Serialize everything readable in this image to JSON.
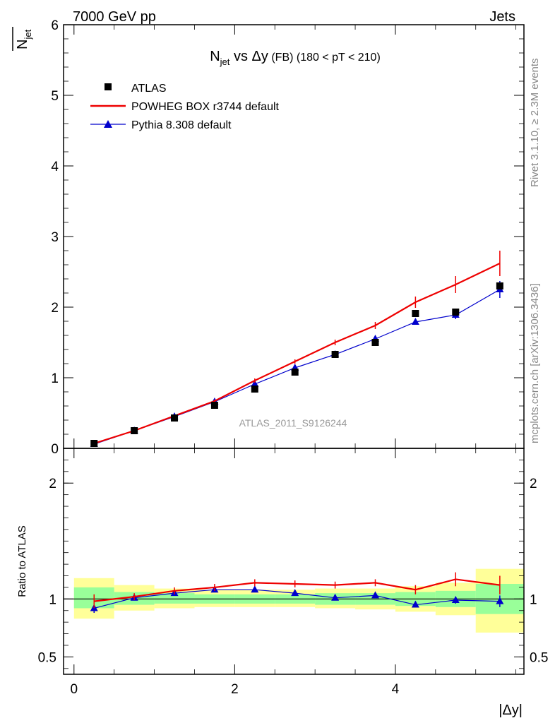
{
  "header": {
    "left": "7000 GeV pp",
    "right": "Jets"
  },
  "side_labels": {
    "rivet": "Rivet 3.1.10, ≥ 2.3M events",
    "mcplots": "mcplots.cern.ch [arXiv:1306.3436]"
  },
  "watermark": "ATLAS_2011_S9126244",
  "plot_title": {
    "n": "N",
    "n_sub": "jet",
    "vs": " vs ",
    "dy": "Δy",
    "fb": " (FB)",
    "range": " (180 < pT < 210)"
  },
  "ylabel_main": {
    "n": "N",
    "sub": "jet"
  },
  "ylabel_ratio": "Ratio to ATLAS",
  "xlabel": "|Δy|",
  "colors": {
    "atlas": "#000000",
    "powheg": "#ee0000",
    "pythia": "#0000cc",
    "band_inner": "#99ff99",
    "band_outer": "#ffff99"
  },
  "chart_data": [
    {
      "type": "line",
      "name_key": "main",
      "xlim": [
        -0.13,
        5.6
      ],
      "ylim": [
        0,
        6
      ],
      "yticks": [
        0,
        1,
        2,
        3,
        4,
        5,
        6
      ],
      "ytick_labels": [
        "0",
        "1",
        "2",
        "3",
        "4",
        "5",
        "6"
      ],
      "x_bins": [
        [
          0,
          0.5
        ],
        [
          0.5,
          1
        ],
        [
          1,
          1.5
        ],
        [
          1.5,
          2
        ],
        [
          2,
          2.5
        ],
        [
          2.5,
          3
        ],
        [
          3,
          3.5
        ],
        [
          3.5,
          4
        ],
        [
          4,
          4.5
        ],
        [
          4.5,
          5
        ],
        [
          5,
          5.6
        ]
      ],
      "x": [
        0.25,
        0.75,
        1.25,
        1.75,
        2.25,
        2.75,
        3.25,
        3.75,
        4.25,
        4.75,
        5.3
      ],
      "legend": {
        "position": "top-left",
        "entries": [
          "ATLAS",
          "POWHEG BOX r3744 default",
          "Pythia 8.308 default"
        ]
      },
      "series": [
        {
          "name": "ATLAS",
          "marker": "square",
          "values": [
            0.07,
            0.25,
            0.43,
            0.61,
            0.84,
            1.08,
            1.33,
            1.5,
            1.91,
            1.93,
            2.3
          ],
          "err": [
            0.02,
            0.02,
            0.03,
            0.03,
            0.03,
            0.03,
            0.03,
            0.04,
            0.05,
            0.05,
            0.06
          ]
        },
        {
          "name": "POWHEG BOX r3744 default",
          "marker": "line",
          "values": [
            0.07,
            0.25,
            0.46,
            0.67,
            0.96,
            1.23,
            1.5,
            1.74,
            2.07,
            2.32,
            2.62
          ],
          "err": [
            0.01,
            0.01,
            0.02,
            0.02,
            0.03,
            0.03,
            0.04,
            0.05,
            0.08,
            0.12,
            0.18
          ]
        },
        {
          "name": "Pythia 8.308 default",
          "marker": "triangle",
          "values": [
            0.06,
            0.25,
            0.45,
            0.66,
            0.91,
            1.14,
            1.33,
            1.55,
            1.79,
            1.89,
            2.25
          ],
          "err": [
            0.005,
            0.01,
            0.01,
            0.01,
            0.015,
            0.02,
            0.02,
            0.03,
            0.04,
            0.06,
            0.12
          ]
        }
      ]
    },
    {
      "type": "line",
      "name_key": "ratio",
      "xlim": [
        -0.13,
        5.6
      ],
      "ylim": [
        0.35,
        2.3
      ],
      "yticks": [
        0.5,
        1,
        2
      ],
      "ytick_labels": [
        "0.5",
        "1",
        "2"
      ],
      "xticks": [
        0,
        2,
        4
      ],
      "xtick_labels": [
        "0",
        "2",
        "4"
      ],
      "reference_line": 1,
      "bands": {
        "inner": [
          [
            0.92,
            1.1
          ],
          [
            0.95,
            1.06
          ],
          [
            0.96,
            1.05
          ],
          [
            0.96,
            1.04
          ],
          [
            0.96,
            1.04
          ],
          [
            0.96,
            1.04
          ],
          [
            0.95,
            1.05
          ],
          [
            0.95,
            1.05
          ],
          [
            0.94,
            1.06
          ],
          [
            0.93,
            1.07
          ],
          [
            0.87,
            1.13
          ]
        ],
        "outer": [
          [
            0.83,
            1.18
          ],
          [
            0.9,
            1.12
          ],
          [
            0.92,
            1.09
          ],
          [
            0.93,
            1.08
          ],
          [
            0.93,
            1.08
          ],
          [
            0.93,
            1.08
          ],
          [
            0.92,
            1.09
          ],
          [
            0.91,
            1.09
          ],
          [
            0.89,
            1.11
          ],
          [
            0.86,
            1.14
          ],
          [
            0.71,
            1.26
          ]
        ]
      },
      "series": [
        {
          "name": "POWHEG BOX r3744 default",
          "values": [
            0.98,
            1.02,
            1.07,
            1.1,
            1.14,
            1.13,
            1.12,
            1.14,
            1.08,
            1.17,
            1.12
          ],
          "err": [
            0.06,
            0.03,
            0.03,
            0.03,
            0.03,
            0.03,
            0.03,
            0.03,
            0.04,
            0.06,
            0.08
          ]
        },
        {
          "name": "Pythia 8.308 default",
          "values": [
            0.92,
            1.01,
            1.05,
            1.08,
            1.08,
            1.05,
            1.01,
            1.03,
            0.95,
            0.99,
            0.98
          ],
          "err": [
            0.04,
            0.02,
            0.02,
            0.02,
            0.02,
            0.02,
            0.02,
            0.02,
            0.02,
            0.03,
            0.05
          ]
        }
      ]
    }
  ]
}
